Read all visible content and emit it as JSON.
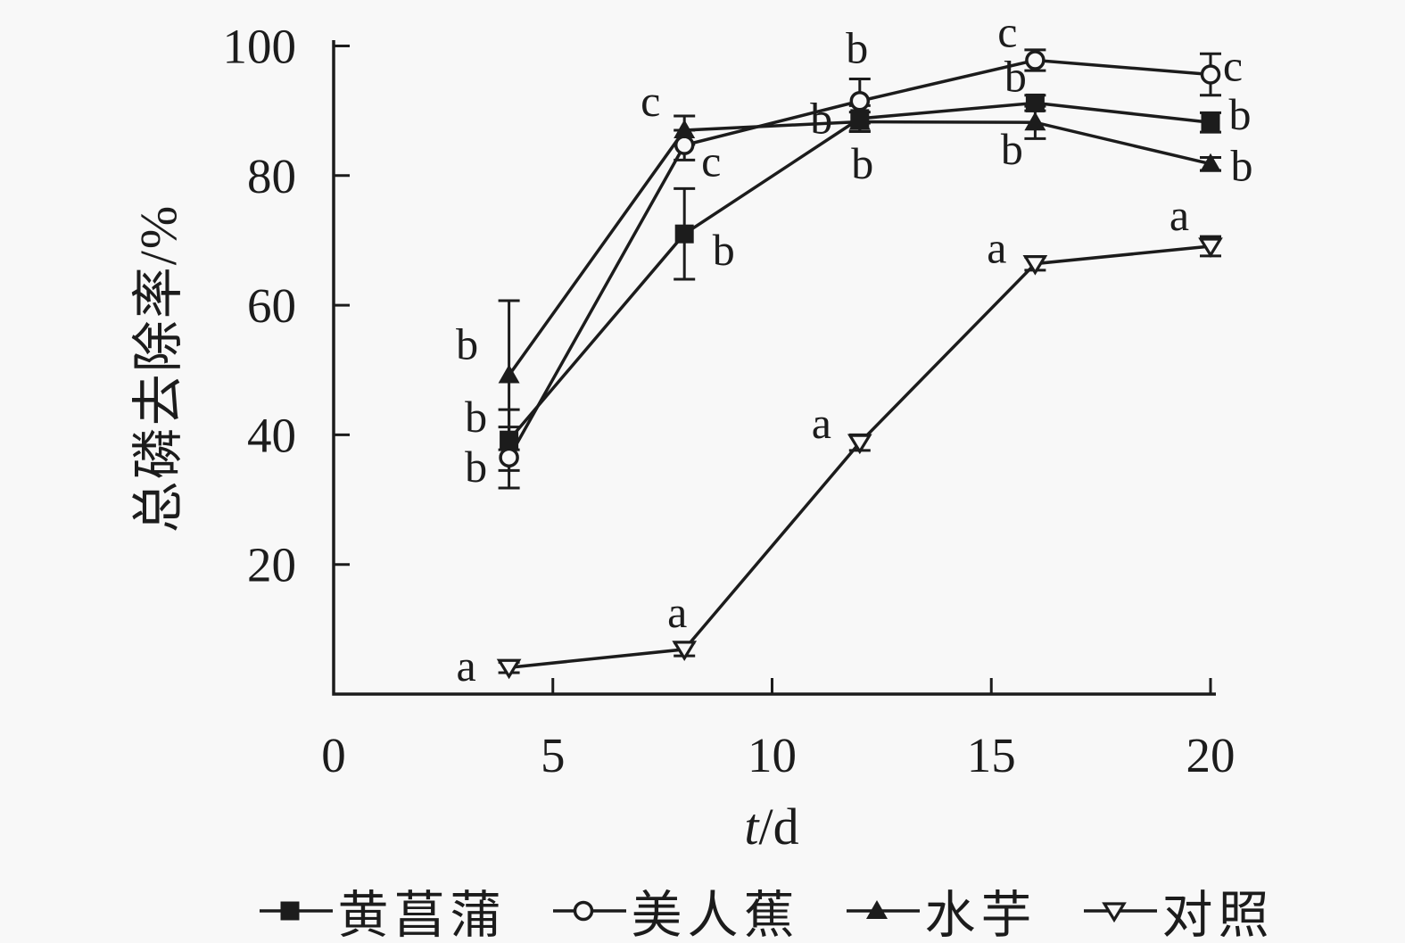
{
  "background": "#f8f8f8",
  "ink": "#1c1c1c",
  "chart_data": {
    "type": "line",
    "title": "",
    "xlabel_var": "t",
    "xlabel_unit": "/d",
    "ylabel": "总磷去除率/%",
    "xlim": [
      0,
      20
    ],
    "ylim": [
      0,
      101
    ],
    "x_ticks": [
      0,
      5,
      10,
      15,
      20
    ],
    "y_ticks": [
      20,
      40,
      60,
      80,
      100
    ],
    "grid": false,
    "legend_position": "bottom",
    "x": [
      4,
      8,
      12,
      16,
      20
    ],
    "series": [
      {
        "name": "黄菖蒲",
        "marker": "square-filled",
        "values": [
          39.2,
          71.0,
          88.8,
          91.2,
          88.2
        ],
        "errors": [
          4.7,
          7.0,
          2.0,
          1.2,
          1.5
        ],
        "letters": [
          "b",
          "b",
          "b",
          "b",
          "b"
        ],
        "letter_offsets": [
          [
            -37,
            -26
          ],
          [
            44,
            18
          ],
          [
            3,
            50
          ],
          [
            -22,
            -30
          ],
          [
            33,
            -9
          ]
        ]
      },
      {
        "name": "美人蕉",
        "marker": "circle-open",
        "values": [
          36.5,
          84.7,
          91.5,
          97.8,
          95.6
        ],
        "errors": [
          4.7,
          2.3,
          3.4,
          1.6,
          3.2
        ],
        "letters": [
          "b",
          "c",
          "b",
          "c",
          "c"
        ],
        "letter_offsets": [
          [
            -37,
            10
          ],
          [
            30,
            18
          ],
          [
            -3,
            -60
          ],
          [
            -31,
            -32
          ],
          [
            25,
            -10
          ]
        ]
      },
      {
        "name": "水芋",
        "marker": "triangle-filled",
        "values": [
          49.2,
          87.0,
          88.3,
          88.2,
          81.8
        ],
        "errors": [
          11.5,
          2.2,
          1.5,
          2.5,
          1.0
        ],
        "letters": [
          "b",
          "c",
          "b",
          "b",
          "b"
        ],
        "letter_offsets": [
          [
            -47,
            -35
          ],
          [
            -38,
            -33
          ],
          [
            -43,
            -4
          ],
          [
            -26,
            30
          ],
          [
            35,
            2
          ]
        ]
      },
      {
        "name": "对照",
        "marker": "triangle-down-open",
        "values": [
          4.1,
          6.9,
          38.8,
          66.4,
          69.1
        ],
        "errors": [
          0.8,
          1.0,
          1.2,
          1.0,
          1.5
        ],
        "letters": [
          "a",
          "a",
          "a",
          "a",
          "a"
        ],
        "letter_offsets": [
          [
            -48,
            -2
          ],
          [
            -8,
            -42
          ],
          [
            -43,
            -22
          ],
          [
            -43,
            -18
          ],
          [
            -35,
            -35
          ]
        ]
      }
    ]
  },
  "legend": {
    "items": [
      {
        "label": "黄菖蒲",
        "marker": "square-filled"
      },
      {
        "label": "美人蕉",
        "marker": "circle-open"
      },
      {
        "label": "水芋",
        "marker": "triangle-filled"
      },
      {
        "label": "对照",
        "marker": "triangle-down-open"
      }
    ]
  }
}
